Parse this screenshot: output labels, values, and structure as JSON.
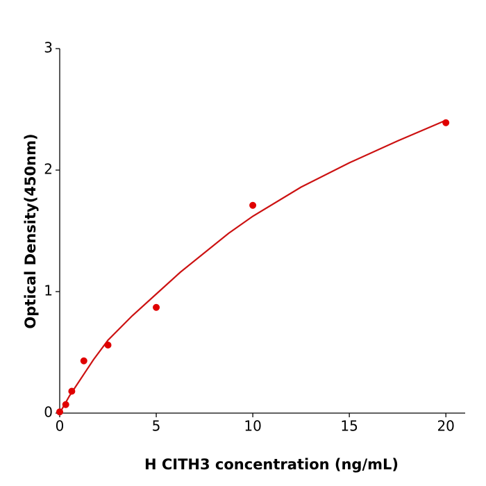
{
  "chart_data": {
    "type": "scatter",
    "x_label": "H  CITH3 concentration (ng/mL)",
    "y_label": "Optical Density(450nm)",
    "xlim": [
      0,
      21
    ],
    "ylim": [
      0,
      3
    ],
    "xticks": [
      0,
      5,
      10,
      15,
      20
    ],
    "yticks": [
      0,
      1,
      2,
      3
    ],
    "series": [
      {
        "type": "scatter",
        "color": "#e00000",
        "x": [
          0,
          0.3125,
          0.625,
          1.25,
          2.5,
          5,
          10,
          20
        ],
        "values": [
          0.01,
          0.07,
          0.18,
          0.43,
          0.56,
          0.87,
          1.71,
          2.39
        ]
      },
      {
        "type": "line",
        "color": "#cc1111",
        "x": [
          0,
          0.5,
          1,
          1.75,
          2.5,
          3.75,
          5,
          6.25,
          7.5,
          8.75,
          10,
          12.5,
          15,
          17.5,
          20
        ],
        "values": [
          0,
          0.14,
          0.26,
          0.44,
          0.6,
          0.8,
          0.98,
          1.16,
          1.32,
          1.48,
          1.62,
          1.86,
          2.06,
          2.24,
          2.41
        ]
      }
    ]
  }
}
